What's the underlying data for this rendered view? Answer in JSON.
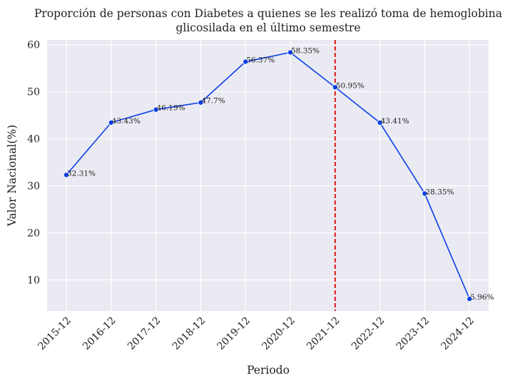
{
  "chart_data": {
    "type": "line",
    "title_lines": [
      "Proporción de personas con Diabetes a quienes se les realizó toma de hemoglobina",
      "glicosilada en el último semestre"
    ],
    "xlabel": "Periodo",
    "ylabel": "Valor Nacional(%)",
    "categories": [
      "2015-12",
      "2016-12",
      "2017-12",
      "2018-12",
      "2019-12",
      "2020-12",
      "2021-12",
      "2022-12",
      "2023-12",
      "2024-12"
    ],
    "values": [
      32.31,
      43.43,
      46.19,
      47.7,
      56.37,
      58.35,
      50.95,
      43.41,
      28.35,
      5.96
    ],
    "data_labels": [
      "32.31%",
      "43.43%",
      "46.19%",
      "47.7%",
      "56.37%",
      "58.35%",
      "50.95%",
      "43.41%",
      "28.35%",
      "5.96%"
    ],
    "yticks": [
      10,
      20,
      30,
      40,
      50,
      60
    ],
    "ylim": [
      3.4,
      61.0
    ],
    "vline": {
      "category": "2021-12",
      "color": "#e00000",
      "style": "dashed"
    },
    "line_color": "#0a3fe8",
    "background_color": "#eaeaf2",
    "grid": true
  }
}
